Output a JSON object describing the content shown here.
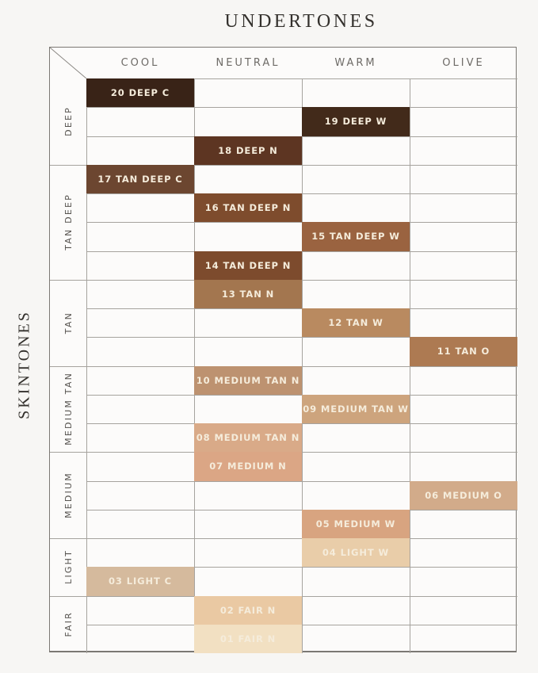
{
  "chart_data": {
    "type": "heatmap",
    "title": "UNDERTONES",
    "x_axis_title": "UNDERTONES",
    "y_axis_title": "SKINTONES",
    "x_categories": [
      "COOL",
      "NEUTRAL",
      "WARM",
      "OLIVE"
    ],
    "y_groups": [
      {
        "label": "DEEP",
        "rows": 3
      },
      {
        "label": "TAN DEEP",
        "rows": 4
      },
      {
        "label": "TAN",
        "rows": 3
      },
      {
        "label": "MEDIUM TAN",
        "rows": 3
      },
      {
        "label": "MEDIUM",
        "rows": 3
      },
      {
        "label": "LIGHT",
        "rows": 2
      },
      {
        "label": "FAIR",
        "rows": 2
      }
    ],
    "cells": [
      {
        "row": 0,
        "col": 0,
        "group": "DEEP",
        "undertone": "COOL",
        "label": "20 DEEP C",
        "color": "#392317"
      },
      {
        "row": 1,
        "col": 2,
        "group": "DEEP",
        "undertone": "WARM",
        "label": "19 DEEP W",
        "color": "#422a1a"
      },
      {
        "row": 2,
        "col": 1,
        "group": "DEEP",
        "undertone": "NEUTRAL",
        "label": "18 DEEP N",
        "color": "#5d3522"
      },
      {
        "row": 3,
        "col": 0,
        "group": "TAN DEEP",
        "undertone": "COOL",
        "label": "17 TAN DEEP C",
        "color": "#6c4630"
      },
      {
        "row": 4,
        "col": 1,
        "group": "TAN DEEP",
        "undertone": "NEUTRAL",
        "label": "16 TAN DEEP N",
        "color": "#7e4c2d"
      },
      {
        "row": 5,
        "col": 2,
        "group": "TAN DEEP",
        "undertone": "WARM",
        "label": "15 TAN DEEP W",
        "color": "#9a6340"
      },
      {
        "row": 6,
        "col": 1,
        "group": "TAN DEEP",
        "undertone": "NEUTRAL",
        "label": "14 TAN DEEP N",
        "color": "#7d4b2d"
      },
      {
        "row": 7,
        "col": 1,
        "group": "TAN",
        "undertone": "NEUTRAL",
        "label": "13 TAN N",
        "color": "#a3764f"
      },
      {
        "row": 8,
        "col": 2,
        "group": "TAN",
        "undertone": "WARM",
        "label": "12 TAN W",
        "color": "#b98a60"
      },
      {
        "row": 9,
        "col": 3,
        "group": "TAN",
        "undertone": "OLIVE",
        "label": "11 TAN O",
        "color": "#ad7a52"
      },
      {
        "row": 10,
        "col": 1,
        "group": "MEDIUM TAN",
        "undertone": "NEUTRAL",
        "label": "10 MEDIUM TAN N",
        "color": "#bd9270"
      },
      {
        "row": 11,
        "col": 2,
        "group": "MEDIUM TAN",
        "undertone": "WARM",
        "label": "09 MEDIUM TAN W",
        "color": "#cda47d"
      },
      {
        "row": 12,
        "col": 1,
        "group": "MEDIUM TAN",
        "undertone": "NEUTRAL",
        "label": "08 MEDIUM TAN N",
        "color": "#d9aa88"
      },
      {
        "row": 13,
        "col": 1,
        "group": "MEDIUM",
        "undertone": "NEUTRAL",
        "label": "07 MEDIUM N",
        "color": "#dba685"
      },
      {
        "row": 14,
        "col": 3,
        "group": "MEDIUM",
        "undertone": "OLIVE",
        "label": "06 MEDIUM O",
        "color": "#d2ab8a"
      },
      {
        "row": 15,
        "col": 2,
        "group": "MEDIUM",
        "undertone": "WARM",
        "label": "05 MEDIUM W",
        "color": "#d8a480"
      },
      {
        "row": 16,
        "col": 2,
        "group": "LIGHT",
        "undertone": "WARM",
        "label": "04 LIGHT W",
        "color": "#e9cda9"
      },
      {
        "row": 17,
        "col": 0,
        "group": "LIGHT",
        "undertone": "COOL",
        "label": "03 LIGHT C",
        "color": "#d5ba9d"
      },
      {
        "row": 18,
        "col": 1,
        "group": "FAIR",
        "undertone": "NEUTRAL",
        "label": "02 FAIR N",
        "color": "#eac9a3"
      },
      {
        "row": 19,
        "col": 1,
        "group": "FAIR",
        "undertone": "NEUTRAL",
        "label": "01 FAIR N",
        "color": "#f2e0c2"
      }
    ],
    "legend": "none",
    "grid": true
  },
  "colors": {
    "page_bg": "#f7f6f4",
    "table_bg": "#fcfbfa",
    "grid_line": "#a6a39e",
    "outer_border": "#7b7873",
    "cell_label": "#f5ecdb",
    "title_text": "#34312d",
    "header_text": "#6e6b67",
    "group_text": "#55524e"
  }
}
